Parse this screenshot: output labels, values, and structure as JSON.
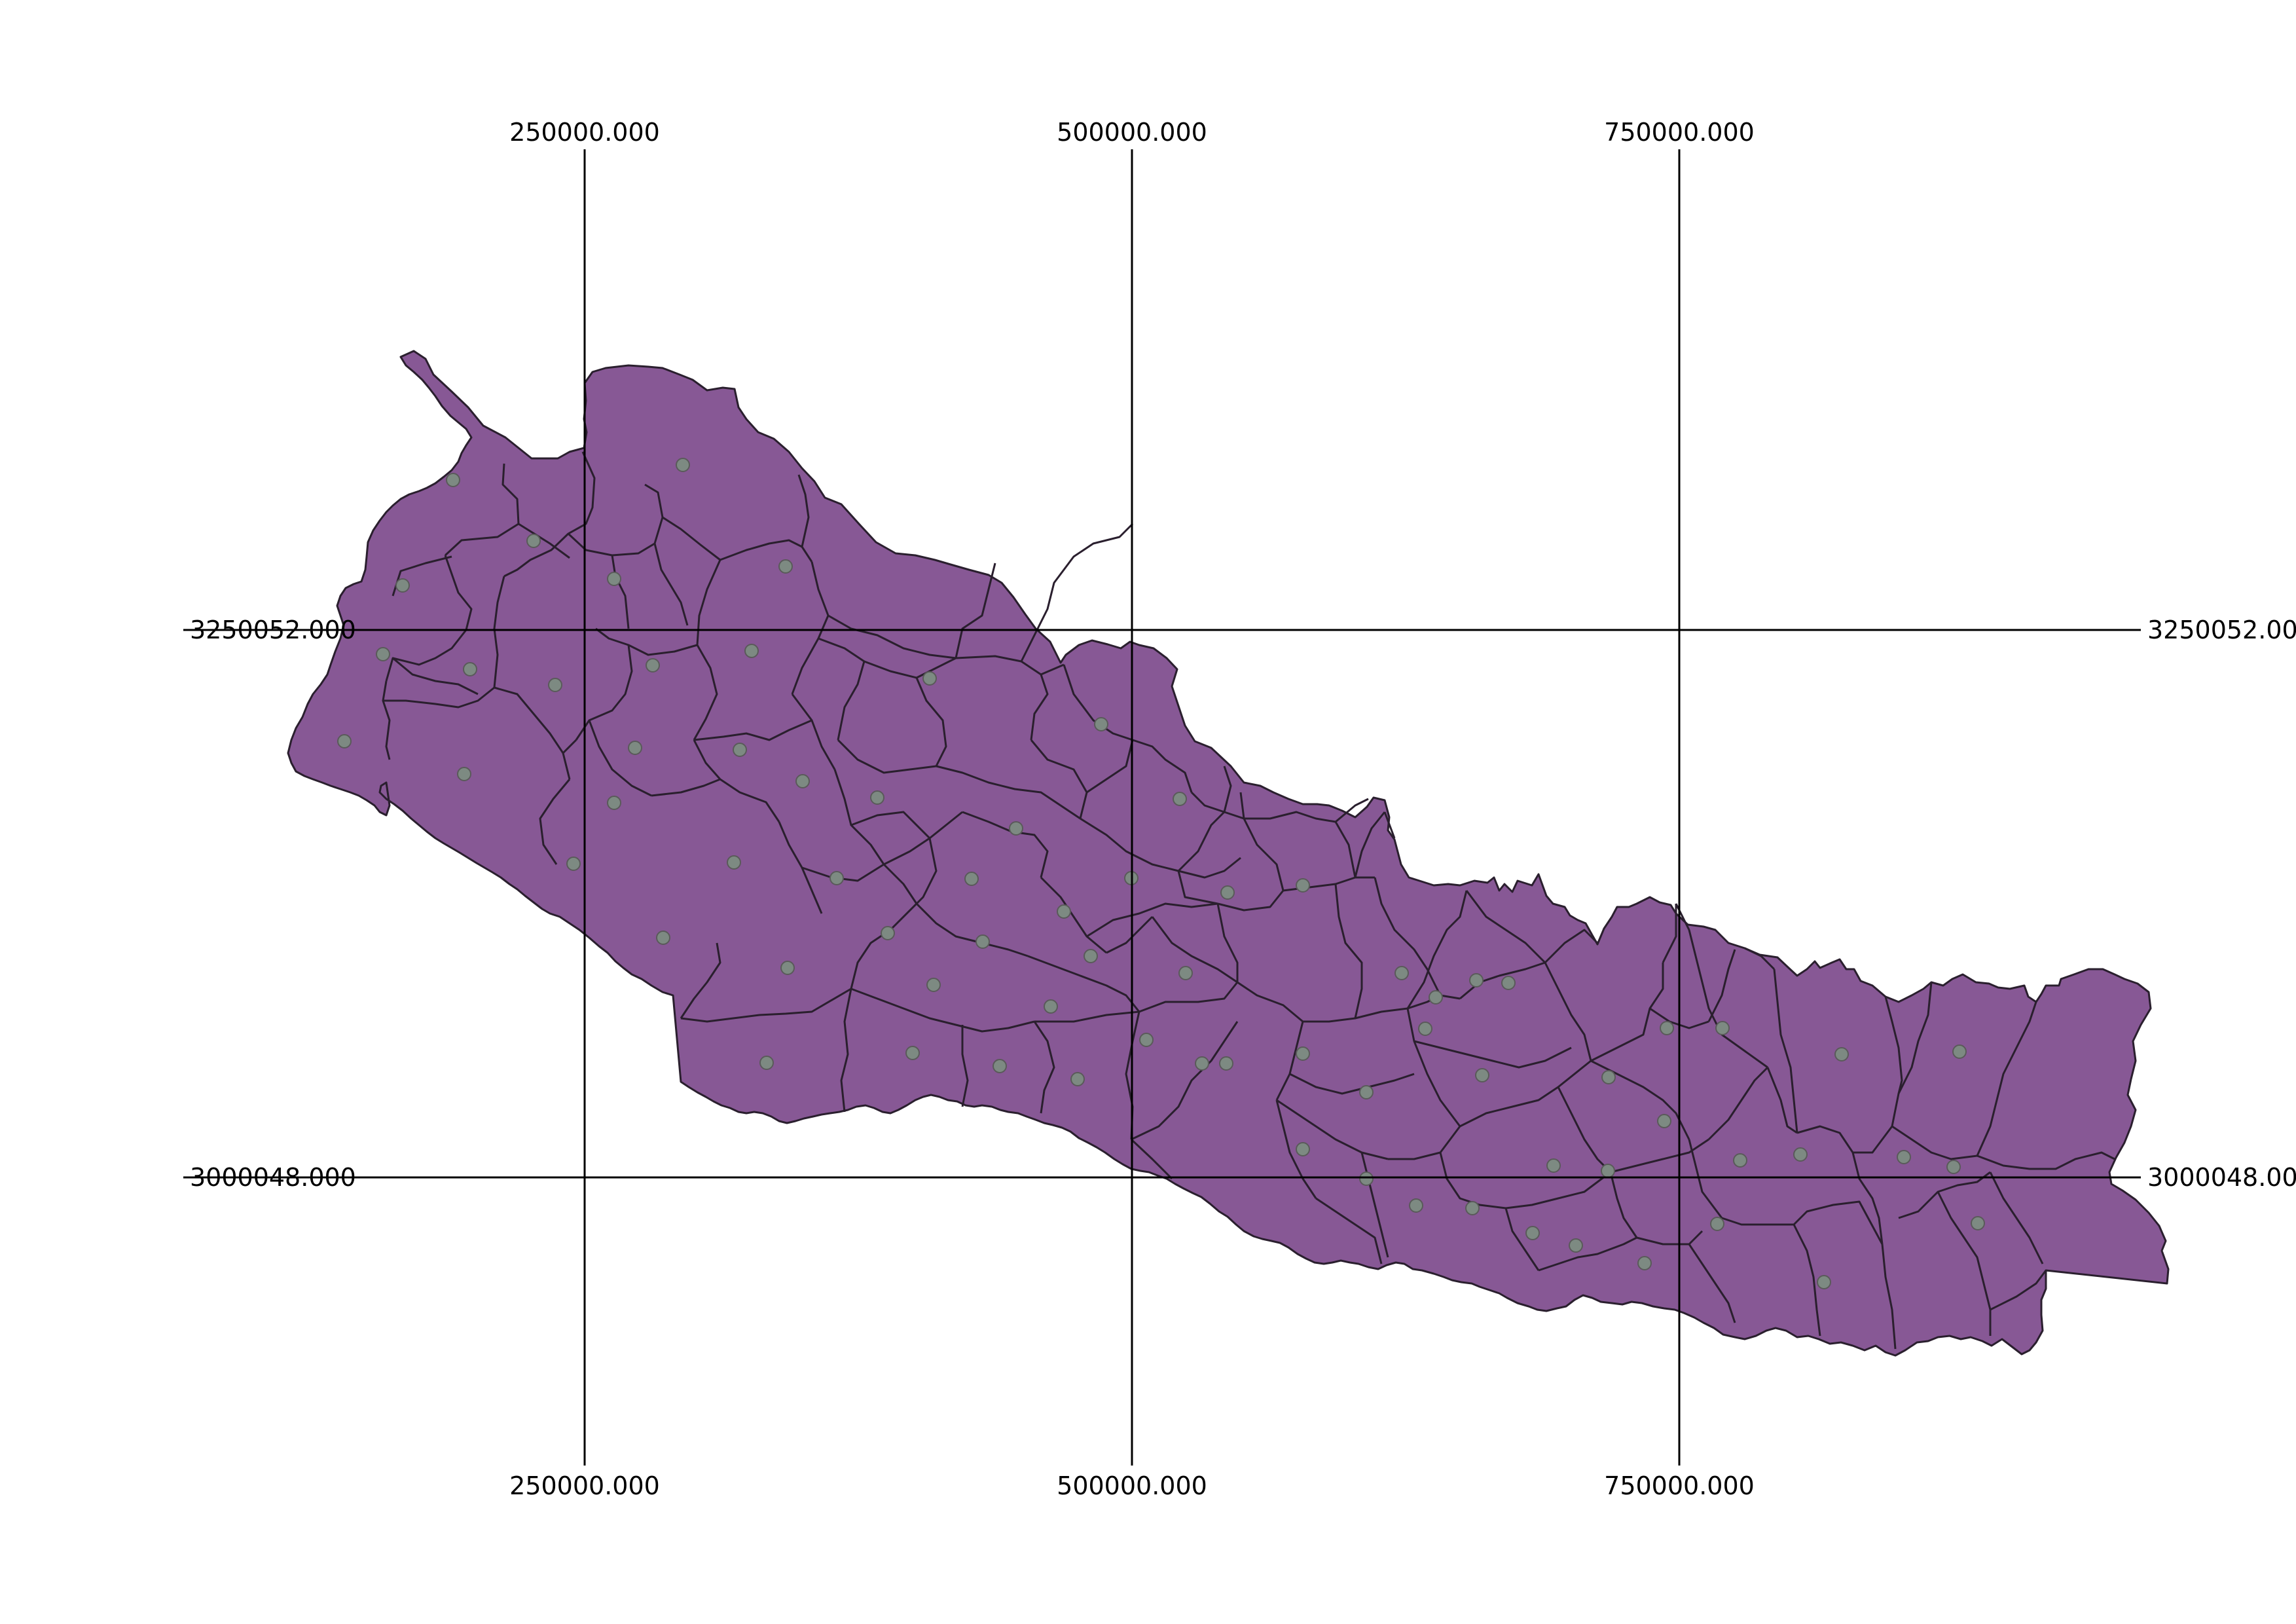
{
  "map": {
    "colors": {
      "background": "#ffffff",
      "district_fill": "#875895",
      "district_stroke": "#2a1f2e",
      "centroid_fill": "#7d8a82",
      "centroid_stroke": "#5a5a5a",
      "grid_line": "#000000"
    },
    "grid": {
      "x_labels_top": [
        "250000.000",
        "500000.000",
        "750000.000"
      ],
      "x_labels_bottom": [
        "250000.000",
        "500000.000",
        "750000.000"
      ],
      "y_labels_left": [
        "3250052.000",
        "3000048.000"
      ],
      "y_labels_right": [
        "3250052.000",
        "3000048.000"
      ]
    },
    "districts": {
      "count": 75
    },
    "centroid_count": 75
  }
}
